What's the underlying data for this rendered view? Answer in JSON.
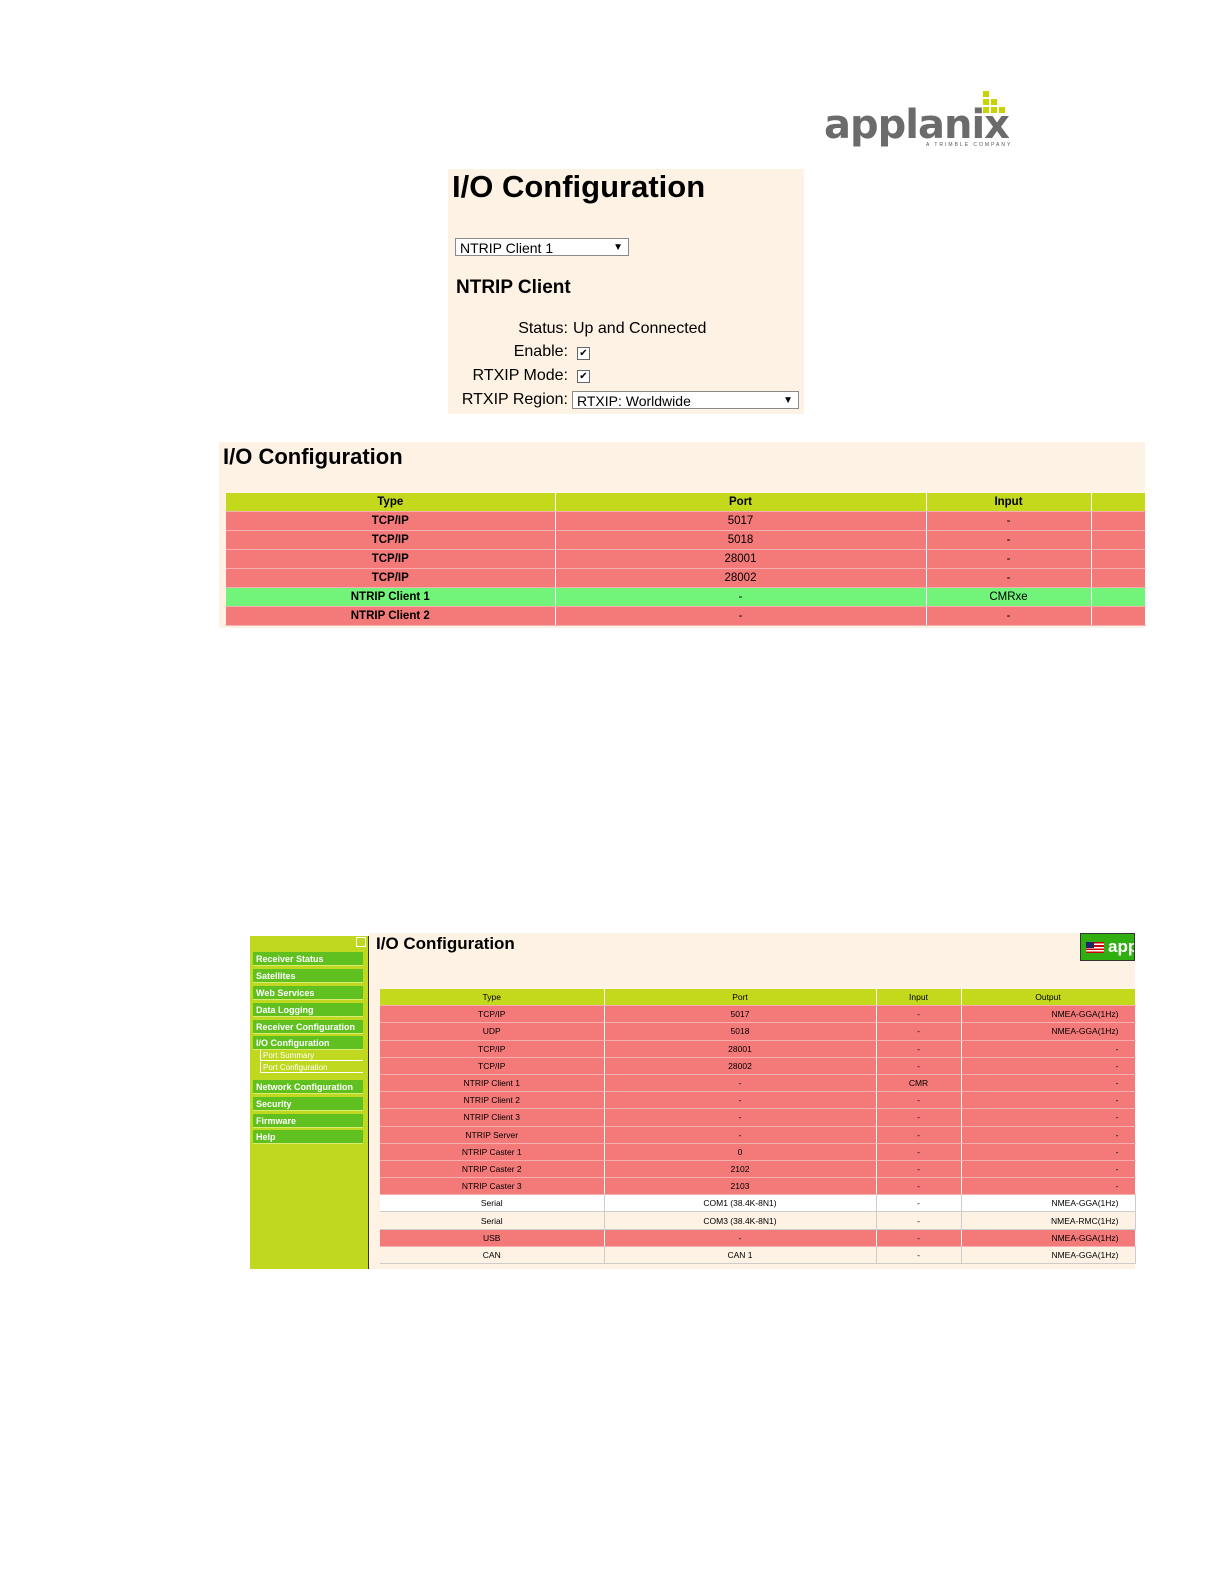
{
  "logo": {
    "text": "applanix",
    "tagline": "A TRIMBLE COMPANY"
  },
  "panel1": {
    "title": "I/O Configuration",
    "port_select": "NTRIP Client 1",
    "section_title": "NTRIP Client",
    "fields": {
      "status_label": "Status:",
      "status_value": "Up and Connected",
      "enable_label": "Enable:",
      "rtxip_mode_label": "RTXIP Mode:",
      "rtxip_region_label": "RTXIP Region:",
      "rtxip_region_value": "RTXIP: Worldwide"
    },
    "enable_checked": true,
    "rtxip_mode_checked": true
  },
  "panel2": {
    "title": "I/O Configuration",
    "headers": [
      "Type",
      "Port",
      "Input",
      ""
    ],
    "rows": [
      {
        "type": "TCP/IP",
        "port": "5017",
        "input": "-",
        "status": "red"
      },
      {
        "type": "TCP/IP",
        "port": "5018",
        "input": "-",
        "status": "red"
      },
      {
        "type": "TCP/IP",
        "port": "28001",
        "input": "-",
        "status": "red"
      },
      {
        "type": "TCP/IP",
        "port": "28002",
        "input": "-",
        "status": "red"
      },
      {
        "type": "NTRIP Client 1",
        "port": "-",
        "input": "CMRxe",
        "status": "green"
      },
      {
        "type": "NTRIP Client 2",
        "port": "-",
        "input": "-",
        "status": "red"
      }
    ]
  },
  "sidebar": {
    "items": [
      "Receiver Status",
      "Satellites",
      "Web Services",
      "Data Logging",
      "Receiver Configuration",
      "I/O Configuration",
      "Network Configuration",
      "Security",
      "Firmware",
      "Help"
    ],
    "subitems": [
      "Port Summary",
      "Port Configuration"
    ]
  },
  "panel3": {
    "title": "I/O Configuration",
    "lang_button": "app",
    "headers": [
      "Type",
      "Port",
      "Input",
      "Output"
    ],
    "rows": [
      {
        "type": "TCP/IP",
        "port": "5017",
        "input": "-",
        "output": "NMEA-GGA(1Hz)",
        "status": "red"
      },
      {
        "type": "UDP",
        "port": "5018",
        "input": "-",
        "output": "NMEA-GGA(1Hz)",
        "status": "red"
      },
      {
        "type": "TCP/IP",
        "port": "28001",
        "input": "-",
        "output": "-",
        "status": "red"
      },
      {
        "type": "TCP/IP",
        "port": "28002",
        "input": "-",
        "output": "-",
        "status": "red"
      },
      {
        "type": "NTRIP Client 1",
        "port": "-",
        "input": "CMR",
        "output": "-",
        "status": "red"
      },
      {
        "type": "NTRIP Client 2",
        "port": "-",
        "input": "-",
        "output": "-",
        "status": "red"
      },
      {
        "type": "NTRIP Client 3",
        "port": "-",
        "input": "-",
        "output": "-",
        "status": "red"
      },
      {
        "type": "NTRIP Server",
        "port": "-",
        "input": "-",
        "output": "-",
        "status": "red"
      },
      {
        "type": "NTRIP Caster 1",
        "port": "0",
        "input": "-",
        "output": "-",
        "status": "red"
      },
      {
        "type": "NTRIP Caster 2",
        "port": "2102",
        "input": "-",
        "output": "-",
        "status": "red"
      },
      {
        "type": "NTRIP Caster 3",
        "port": "2103",
        "input": "-",
        "output": "-",
        "status": "red"
      },
      {
        "type": "Serial",
        "port": "COM1 (38.4K-8N1)",
        "input": "-",
        "output": "NMEA-GGA(1Hz)",
        "status": "white"
      },
      {
        "type": "Serial",
        "port": "COM3 (38.4K-8N1)",
        "input": "-",
        "output": "NMEA-RMC(1Hz)",
        "status": "cream"
      },
      {
        "type": "USB",
        "port": "-",
        "input": "-",
        "output": "NMEA-GGA(1Hz)",
        "status": "red"
      },
      {
        "type": "CAN",
        "port": "CAN 1",
        "input": "-",
        "output": "NMEA-GGA(1Hz)",
        "status": "cream"
      }
    ]
  },
  "colors": {
    "panel_bg": "#fdf2e4",
    "header_green": "#c4d81c",
    "row_red": "#f47a7a",
    "row_green": "#72f47a",
    "sidebar_bg": "#c0d820",
    "nav_item": "#60c020"
  }
}
